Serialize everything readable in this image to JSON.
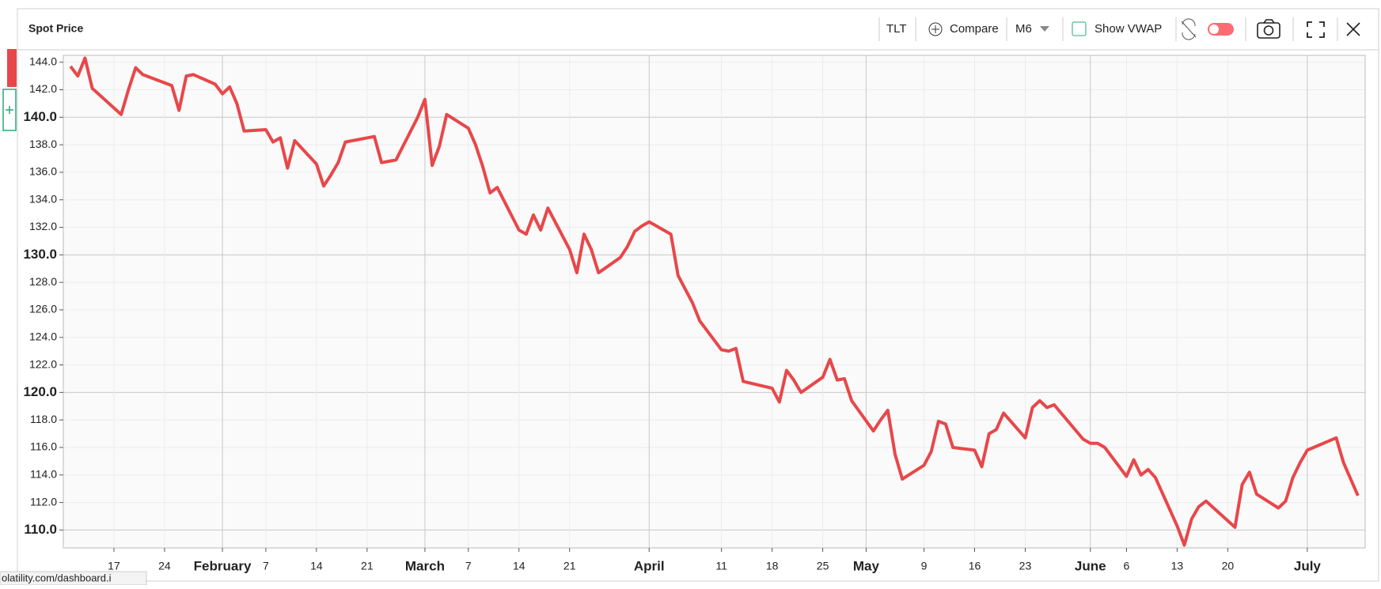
{
  "chart_data": {
    "type": "line",
    "title": "Spot Price",
    "color": "#e8474a",
    "x": [
      "01-11",
      "01-12",
      "01-13",
      "01-14",
      "01-18",
      "01-19",
      "01-20",
      "01-21",
      "01-24",
      "01-25",
      "01-26",
      "01-27",
      "01-28",
      "01-31",
      "02-01",
      "02-02",
      "02-03",
      "02-04",
      "02-07",
      "02-08",
      "02-09",
      "02-10",
      "02-11",
      "02-14",
      "02-15",
      "02-16",
      "02-17",
      "02-18",
      "02-22",
      "02-23",
      "02-24",
      "02-25",
      "02-28",
      "03-01",
      "03-02",
      "03-03",
      "03-04",
      "03-07",
      "03-08",
      "03-09",
      "03-10",
      "03-11",
      "03-14",
      "03-15",
      "03-16",
      "03-17",
      "03-18",
      "03-21",
      "03-22",
      "03-23",
      "03-24",
      "03-25",
      "03-28",
      "03-29",
      "03-30",
      "03-31",
      "04-01",
      "04-04",
      "04-05",
      "04-06",
      "04-07",
      "04-08",
      "04-11",
      "04-12",
      "04-13",
      "04-14",
      "04-18",
      "04-19",
      "04-20",
      "04-21",
      "04-22",
      "04-25",
      "04-26",
      "04-27",
      "04-28",
      "04-29",
      "05-02",
      "05-03",
      "05-04",
      "05-05",
      "05-06",
      "05-09",
      "05-10",
      "05-11",
      "05-12",
      "05-13",
      "05-16",
      "05-17",
      "05-18",
      "05-19",
      "05-20",
      "05-23",
      "05-24",
      "05-25",
      "05-26",
      "05-27",
      "05-31",
      "06-01",
      "06-02",
      "06-03",
      "06-06",
      "06-07",
      "06-08",
      "06-09",
      "06-10",
      "06-13",
      "06-14",
      "06-15",
      "06-16",
      "06-17",
      "06-21",
      "06-22",
      "06-23",
      "06-24",
      "06-27",
      "06-28",
      "06-29",
      "06-30",
      "07-01",
      "07-05",
      "07-06",
      "07-07",
      "07-08"
    ],
    "values": [
      143.7,
      143.0,
      144.3,
      142.1,
      140.2,
      142.0,
      143.6,
      143.1,
      142.5,
      142.3,
      140.5,
      143.0,
      143.1,
      142.4,
      141.7,
      142.2,
      141.0,
      139.0,
      139.1,
      138.2,
      138.5,
      136.3,
      138.3,
      136.6,
      135.0,
      135.8,
      136.7,
      138.2,
      138.6,
      136.7,
      136.8,
      136.9,
      140.0,
      141.3,
      136.5,
      137.9,
      140.2,
      139.2,
      138.0,
      136.4,
      134.5,
      134.9,
      131.8,
      131.5,
      132.9,
      131.8,
      133.4,
      130.4,
      128.7,
      131.5,
      130.4,
      128.7,
      129.8,
      130.6,
      131.7,
      132.1,
      132.4,
      131.5,
      128.5,
      127.5,
      126.5,
      125.2,
      123.1,
      123.0,
      123.2,
      120.8,
      120.3,
      119.3,
      121.6,
      120.9,
      120.0,
      121.1,
      122.4,
      120.9,
      121.0,
      119.4,
      117.2,
      118.0,
      118.7,
      115.5,
      113.7,
      114.7,
      115.7,
      117.9,
      117.7,
      116.0,
      115.8,
      114.6,
      117.0,
      117.3,
      118.5,
      116.7,
      118.9,
      119.4,
      118.9,
      119.1,
      116.6,
      116.3,
      116.3,
      116.0,
      113.9,
      115.1,
      114.0,
      114.4,
      113.8,
      110.3,
      108.9,
      110.8,
      111.7,
      112.1,
      110.2,
      113.3,
      114.2,
      112.6,
      111.6,
      112.1,
      113.8,
      114.9,
      115.8,
      116.7,
      114.9,
      113.7,
      112.5
    ],
    "xlim": [
      "01-10",
      "07-09"
    ],
    "xticks": [
      {
        "value": "01-17",
        "label": "17"
      },
      {
        "value": "01-24",
        "label": "24"
      },
      {
        "value": "02-01",
        "label": "February"
      },
      {
        "value": "02-07",
        "label": "7"
      },
      {
        "value": "02-14",
        "label": "14"
      },
      {
        "value": "02-21",
        "label": "21"
      },
      {
        "value": "03-01",
        "label": "March"
      },
      {
        "value": "03-07",
        "label": "7"
      },
      {
        "value": "03-14",
        "label": "14"
      },
      {
        "value": "03-21",
        "label": "21"
      },
      {
        "value": "04-01",
        "label": "April"
      },
      {
        "value": "04-11",
        "label": "11"
      },
      {
        "value": "04-18",
        "label": "18"
      },
      {
        "value": "04-25",
        "label": "25"
      },
      {
        "value": "05-01",
        "label": "May"
      },
      {
        "value": "05-09",
        "label": "9"
      },
      {
        "value": "05-16",
        "label": "16"
      },
      {
        "value": "05-23",
        "label": "23"
      },
      {
        "value": "06-01",
        "label": "June"
      },
      {
        "value": "06-06",
        "label": "6"
      },
      {
        "value": "06-13",
        "label": "13"
      },
      {
        "value": "06-20",
        "label": "20"
      },
      {
        "value": "07-01",
        "label": "July"
      }
    ],
    "ylim": [
      108.7,
      144.5
    ],
    "yticks": [
      {
        "value": 110,
        "label": "110.0"
      },
      {
        "value": 112,
        "label": "112.0"
      },
      {
        "value": 114,
        "label": "114.0"
      },
      {
        "value": 116,
        "label": "116.0"
      },
      {
        "value": 118,
        "label": "118.0"
      },
      {
        "value": 120,
        "label": "120.0"
      },
      {
        "value": 122,
        "label": "122.0"
      },
      {
        "value": 124,
        "label": "124.0"
      },
      {
        "value": 126,
        "label": "126.0"
      },
      {
        "value": 128,
        "label": "128.0"
      },
      {
        "value": 130,
        "label": "130.0"
      },
      {
        "value": 132,
        "label": "132.0"
      },
      {
        "value": 134,
        "label": "134.0"
      },
      {
        "value": 136,
        "label": "136.0"
      },
      {
        "value": 138,
        "label": "138.0"
      },
      {
        "value": 140,
        "label": "140.0"
      },
      {
        "value": 142,
        "label": "142.0"
      },
      {
        "value": 144,
        "label": "144.0"
      }
    ],
    "grid": true
  },
  "toolbar": {
    "symbol": "TLT",
    "compare": "Compare",
    "period": "M6",
    "vwap": "Show VWAP"
  },
  "status_url": "olatility.com/dashboard.i"
}
